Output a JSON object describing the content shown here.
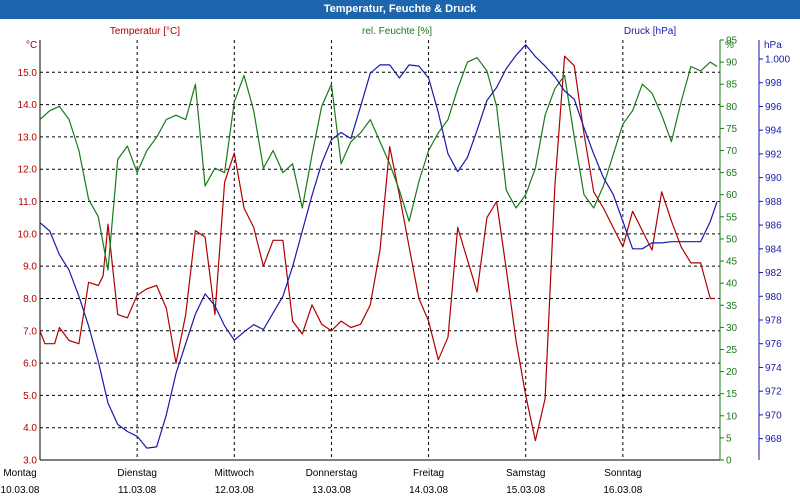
{
  "window": {
    "title": "Temperatur, Feuchte & Druck"
  },
  "colors": {
    "temp": "#b00000",
    "hum": "#1a7a1a",
    "press": "#1a1aa8",
    "grid": "#000000"
  },
  "chart_data": {
    "type": "line",
    "title": "Temperatur, Feuchte & Druck",
    "axes": {
      "temp": {
        "label": "Temperatur [°C]",
        "unit_label": "°C",
        "ylim": [
          3,
          16
        ],
        "ticks": [
          "3.0",
          "4.0",
          "5.0",
          "6.0",
          "7.0",
          "8.0",
          "9.0",
          "10.0",
          "11.0",
          "12.0",
          "13.0",
          "14.0",
          "15.0"
        ]
      },
      "hum": {
        "label": "rel. Feuchte [%]",
        "unit_label": "%",
        "ylim": [
          0,
          95
        ],
        "ticks": [
          "0",
          "5",
          "10",
          "15",
          "20",
          "25",
          "30",
          "35",
          "40",
          "45",
          "50",
          "55",
          "60",
          "65",
          "70",
          "75",
          "80",
          "85",
          "90",
          "95"
        ]
      },
      "press": {
        "label": "Druck [hPa]",
        "unit_label": "hPa",
        "ylim": [
          966.2,
          1001.6
        ],
        "ticks": [
          "968",
          "970",
          "972",
          "974",
          "976",
          "978",
          "980",
          "982",
          "984",
          "986",
          "988",
          "990",
          "992",
          "994",
          "996",
          "998",
          "1.000"
        ]
      }
    },
    "x_labels": [
      {
        "day": "Montag",
        "date": "10.03.08"
      },
      {
        "day": "Dienstag",
        "date": "11.03.08"
      },
      {
        "day": "Mittwoch",
        "date": "12.03.08"
      },
      {
        "day": "Donnerstag",
        "date": "13.03.08"
      },
      {
        "day": "Freitag",
        "date": "14.03.08"
      },
      {
        "day": "Samstag",
        "date": "15.03.08"
      },
      {
        "day": "Sonntag",
        "date": "16.03.08"
      }
    ],
    "xlim": [
      0,
      7
    ],
    "series": [
      {
        "name": "Temperatur",
        "axis": "temp",
        "color": "#b00000",
        "x": [
          0,
          0.05,
          0.15,
          0.2,
          0.3,
          0.4,
          0.5,
          0.6,
          0.65,
          0.7,
          0.8,
          0.9,
          1.0,
          1.1,
          1.2,
          1.3,
          1.4,
          1.5,
          1.6,
          1.7,
          1.8,
          1.9,
          2.0,
          2.1,
          2.2,
          2.3,
          2.4,
          2.5,
          2.6,
          2.7,
          2.8,
          2.9,
          3.0,
          3.1,
          3.2,
          3.3,
          3.4,
          3.5,
          3.6,
          3.7,
          3.8,
          3.9,
          4.0,
          4.1,
          4.2,
          4.3,
          4.4,
          4.5,
          4.6,
          4.7,
          4.8,
          4.9,
          5.0,
          5.1,
          5.2,
          5.3,
          5.4,
          5.5,
          5.6,
          5.7,
          5.8,
          5.9,
          6.0,
          6.1,
          6.2,
          6.3,
          6.4,
          6.5,
          6.6,
          6.7,
          6.8,
          6.9,
          6.95
        ],
        "values": [
          7.0,
          6.6,
          6.6,
          7.1,
          6.7,
          6.6,
          8.5,
          8.4,
          8.7,
          10.3,
          7.5,
          7.4,
          8.1,
          8.3,
          8.4,
          7.7,
          6.0,
          7.5,
          10.1,
          9.9,
          7.5,
          11.6,
          12.5,
          10.8,
          10.2,
          9.0,
          9.8,
          9.8,
          7.3,
          6.9,
          7.8,
          7.2,
          7.0,
          7.3,
          7.1,
          7.2,
          7.8,
          9.5,
          12.7,
          11.2,
          9.6,
          8.0,
          7.3,
          6.1,
          6.8,
          10.2,
          9.2,
          8.2,
          10.5,
          11.0,
          8.9,
          6.7,
          5.0,
          3.6,
          4.9,
          11.5,
          15.5,
          15.2,
          13.1,
          11.3,
          10.8,
          10.2,
          9.6,
          10.7,
          10.1,
          9.5,
          11.3,
          10.4,
          9.6,
          9.1,
          9.1,
          8.0,
          8.0
        ]
      },
      {
        "name": "rel. Feuchte",
        "axis": "hum",
        "color": "#1a7a1a",
        "x": [
          0,
          0.1,
          0.2,
          0.3,
          0.4,
          0.5,
          0.6,
          0.65,
          0.7,
          0.8,
          0.9,
          1.0,
          1.1,
          1.2,
          1.3,
          1.4,
          1.5,
          1.6,
          1.7,
          1.8,
          1.9,
          2.0,
          2.1,
          2.2,
          2.3,
          2.4,
          2.5,
          2.6,
          2.7,
          2.8,
          2.9,
          3.0,
          3.1,
          3.2,
          3.3,
          3.4,
          3.5,
          3.6,
          3.7,
          3.8,
          3.9,
          4.0,
          4.1,
          4.2,
          4.3,
          4.4,
          4.5,
          4.6,
          4.7,
          4.8,
          4.9,
          5.0,
          5.1,
          5.2,
          5.3,
          5.4,
          5.5,
          5.6,
          5.7,
          5.8,
          5.9,
          6.0,
          6.1,
          6.2,
          6.3,
          6.4,
          6.5,
          6.6,
          6.7,
          6.8,
          6.9,
          6.97
        ],
        "values": [
          77,
          79,
          80,
          77,
          70,
          59,
          55,
          49,
          43,
          68,
          71,
          65,
          70,
          73,
          77,
          78,
          77,
          85,
          62,
          66,
          65,
          81,
          87,
          79,
          66,
          70,
          65,
          67,
          57,
          69,
          80,
          85,
          67,
          72,
          74,
          77,
          72,
          67,
          61,
          54,
          63,
          70,
          74,
          77,
          84,
          90,
          91,
          88,
          80,
          61,
          57,
          60,
          66,
          78,
          84,
          87,
          73,
          60,
          57,
          62,
          69,
          76,
          79,
          85,
          83,
          78,
          72,
          81,
          89,
          88,
          90,
          89
        ]
      },
      {
        "name": "Druck",
        "axis": "press",
        "color": "#1a1aa8",
        "x": [
          0,
          0.1,
          0.2,
          0.3,
          0.4,
          0.5,
          0.6,
          0.7,
          0.8,
          0.9,
          1.0,
          1.1,
          1.2,
          1.3,
          1.4,
          1.5,
          1.6,
          1.7,
          1.8,
          1.9,
          2.0,
          2.1,
          2.2,
          2.3,
          2.4,
          2.5,
          2.6,
          2.7,
          2.8,
          2.9,
          3.0,
          3.1,
          3.2,
          3.3,
          3.4,
          3.5,
          3.6,
          3.7,
          3.8,
          3.9,
          4.0,
          4.1,
          4.2,
          4.3,
          4.4,
          4.5,
          4.6,
          4.7,
          4.8,
          4.9,
          5.0,
          5.1,
          5.2,
          5.3,
          5.4,
          5.5,
          5.6,
          5.7,
          5.8,
          5.9,
          6.0,
          6.1,
          6.2,
          6.3,
          6.4,
          6.5,
          6.6,
          6.7,
          6.8,
          6.9,
          6.97
        ],
        "values": [
          986.2,
          985.5,
          983.5,
          982.2,
          980.0,
          977.5,
          974.5,
          971.0,
          969.2,
          968.6,
          968.2,
          967.2,
          967.3,
          970.0,
          973.5,
          976.0,
          978.5,
          980.2,
          979.2,
          977.5,
          976.3,
          977.0,
          977.6,
          977.2,
          978.6,
          980.0,
          982.5,
          985.5,
          988.5,
          991.2,
          993.2,
          993.8,
          993.3,
          996.0,
          998.8,
          999.5,
          999.5,
          998.4,
          999.5,
          999.4,
          998.4,
          995.5,
          992.0,
          990.5,
          991.7,
          994.0,
          996.5,
          997.6,
          999.2,
          1000.3,
          1001.2,
          1000.2,
          999.4,
          998.5,
          997.3,
          996.6,
          994.2,
          992.0,
          990.0,
          988.6,
          986.3,
          984.0,
          984.0,
          984.5,
          984.5,
          984.6,
          984.6,
          984.6,
          984.6,
          986.3,
          988.0
        ]
      }
    ]
  }
}
